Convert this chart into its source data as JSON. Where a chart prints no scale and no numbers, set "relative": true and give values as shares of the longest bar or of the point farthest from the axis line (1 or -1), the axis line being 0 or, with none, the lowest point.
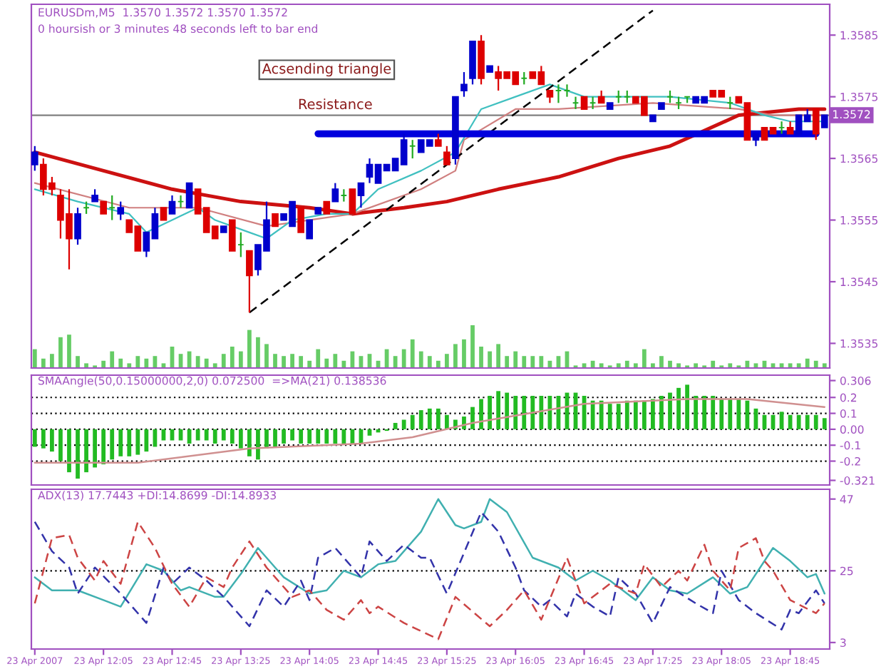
{
  "chart_data": [
    {
      "type": "candlestick",
      "title": "EURUSDm,M5  1.3570 1.3572 1.3570 1.3572",
      "subtitle": "0 hoursish or 3 minutes 48 seconds left to bar end",
      "x": [
        "2007-04-23T11:25",
        "2007-04-23T11:30",
        "2007-04-23T11:35",
        "2007-04-23T11:40",
        "2007-04-23T11:45",
        "2007-04-23T11:50",
        "2007-04-23T11:55",
        "2007-04-23T12:00",
        "2007-04-23T12:05",
        "2007-04-23T12:10",
        "2007-04-23T12:15",
        "2007-04-23T12:20",
        "2007-04-23T12:25",
        "2007-04-23T12:30",
        "2007-04-23T12:35",
        "2007-04-23T12:40",
        "2007-04-23T12:45",
        "2007-04-23T12:50",
        "2007-04-23T12:55",
        "2007-04-23T13:00",
        "2007-04-23T13:05",
        "2007-04-23T13:10",
        "2007-04-23T13:15",
        "2007-04-23T13:20",
        "2007-04-23T13:25",
        "2007-04-23T13:30",
        "2007-04-23T13:35",
        "2007-04-23T13:40",
        "2007-04-23T13:45",
        "2007-04-23T13:50",
        "2007-04-23T13:55",
        "2007-04-23T14:00",
        "2007-04-23T14:05",
        "2007-04-23T14:10",
        "2007-04-23T14:15",
        "2007-04-23T14:20",
        "2007-04-23T14:25",
        "2007-04-23T14:30",
        "2007-04-23T14:35",
        "2007-04-23T14:40",
        "2007-04-23T14:45",
        "2007-04-23T14:50",
        "2007-04-23T14:55",
        "2007-04-23T15:00",
        "2007-04-23T15:05",
        "2007-04-23T15:10",
        "2007-04-23T15:15",
        "2007-04-23T15:20",
        "2007-04-23T15:25",
        "2007-04-23T15:30",
        "2007-04-23T15:35",
        "2007-04-23T15:40",
        "2007-04-23T15:45",
        "2007-04-23T15:50",
        "2007-04-23T15:55",
        "2007-04-23T16:00",
        "2007-04-23T16:05",
        "2007-04-23T16:10",
        "2007-04-23T16:15",
        "2007-04-23T16:20",
        "2007-04-23T16:25",
        "2007-04-23T16:30",
        "2007-04-23T16:35",
        "2007-04-23T16:40",
        "2007-04-23T16:45",
        "2007-04-23T16:50",
        "2007-04-23T16:55",
        "2007-04-23T17:00",
        "2007-04-23T17:05",
        "2007-04-23T17:10",
        "2007-04-23T17:15",
        "2007-04-23T17:20",
        "2007-04-23T17:25",
        "2007-04-23T17:30",
        "2007-04-23T17:35",
        "2007-04-23T17:40",
        "2007-04-23T17:45",
        "2007-04-23T17:50",
        "2007-04-23T17:55",
        "2007-04-23T18:00",
        "2007-04-23T18:05",
        "2007-04-23T18:10",
        "2007-04-23T18:15",
        "2007-04-23T18:20",
        "2007-04-23T18:25",
        "2007-04-23T18:30",
        "2007-04-23T18:35",
        "2007-04-23T18:40",
        "2007-04-23T18:45",
        "2007-04-23T18:50",
        "2007-04-23T18:55",
        "2007-04-23T19:00",
        "2007-04-23T19:05"
      ],
      "ohlc": [
        [
          1.3564,
          1.3567,
          1.3563,
          1.3566
        ],
        [
          1.3564,
          1.3565,
          1.3559,
          1.356
        ],
        [
          1.3561,
          1.3562,
          1.3559,
          1.356
        ],
        [
          1.3559,
          1.356,
          1.3552,
          1.3555
        ],
        [
          1.3556,
          1.356,
          1.3547,
          1.3552
        ],
        [
          1.3552,
          1.3557,
          1.3551,
          1.3556
        ],
        [
          1.3557,
          1.3558,
          1.3556,
          1.3557
        ],
        [
          1.3558,
          1.356,
          1.3558,
          1.3559
        ],
        [
          1.3558,
          1.3558,
          1.3556,
          1.3556
        ],
        [
          1.3557,
          1.3559,
          1.3555,
          1.3557
        ],
        [
          1.3556,
          1.3558,
          1.3555,
          1.3557
        ],
        [
          1.3555,
          1.3555,
          1.3553,
          1.3553
        ],
        [
          1.3554,
          1.3554,
          1.355,
          1.355
        ],
        [
          1.355,
          1.3553,
          1.3549,
          1.3553
        ],
        [
          1.3552,
          1.3557,
          1.3552,
          1.3556
        ],
        [
          1.3557,
          1.3557,
          1.3555,
          1.3555
        ],
        [
          1.3556,
          1.3559,
          1.3556,
          1.3558
        ],
        [
          1.3558,
          1.3559,
          1.3557,
          1.3558
        ],
        [
          1.3557,
          1.3561,
          1.3557,
          1.3561
        ],
        [
          1.356,
          1.356,
          1.3556,
          1.3556
        ],
        [
          1.3557,
          1.3557,
          1.3553,
          1.3553
        ],
        [
          1.3554,
          1.3554,
          1.3552,
          1.3552
        ],
        [
          1.3553,
          1.3554,
          1.3553,
          1.3554
        ],
        [
          1.3555,
          1.3555,
          1.355,
          1.355
        ],
        [
          1.3551,
          1.3553,
          1.3549,
          1.3551
        ],
        [
          1.355,
          1.355,
          1.354,
          1.3546
        ],
        [
          1.3547,
          1.3551,
          1.3546,
          1.3551
        ],
        [
          1.355,
          1.3558,
          1.355,
          1.3555
        ],
        [
          1.3556,
          1.3556,
          1.3554,
          1.3554
        ],
        [
          1.3555,
          1.3556,
          1.3555,
          1.3556
        ],
        [
          1.3554,
          1.3558,
          1.3554,
          1.3558
        ],
        [
          1.3557,
          1.3557,
          1.3553,
          1.3553
        ],
        [
          1.3552,
          1.3555,
          1.3552,
          1.3555
        ],
        [
          1.3556,
          1.3557,
          1.3556,
          1.3557
        ],
        [
          1.3558,
          1.3558,
          1.3556,
          1.3556
        ],
        [
          1.3558,
          1.3561,
          1.3558,
          1.356
        ],
        [
          1.3559,
          1.356,
          1.3558,
          1.3559
        ],
        [
          1.356,
          1.356,
          1.3556,
          1.3556
        ],
        [
          1.3559,
          1.3561,
          1.3557,
          1.3561
        ],
        [
          1.3562,
          1.3565,
          1.3561,
          1.3564
        ],
        [
          1.3561,
          1.3564,
          1.3561,
          1.3564
        ],
        [
          1.3563,
          1.3564,
          1.3563,
          1.3564
        ],
        [
          1.3563,
          1.3565,
          1.3563,
          1.3565
        ],
        [
          1.3564,
          1.3569,
          1.3564,
          1.3568
        ],
        [
          1.3567,
          1.3568,
          1.3565,
          1.3567
        ],
        [
          1.3566,
          1.3568,
          1.3566,
          1.3568
        ],
        [
          1.3567,
          1.3568,
          1.3567,
          1.3568
        ],
        [
          1.3568,
          1.3569,
          1.3567,
          1.3567
        ],
        [
          1.3566,
          1.3567,
          1.3564,
          1.3564
        ],
        [
          1.3565,
          1.3575,
          1.3564,
          1.3575
        ],
        [
          1.3576,
          1.3579,
          1.3575,
          1.3577
        ],
        [
          1.3578,
          1.3584,
          1.3577,
          1.3584
        ],
        [
          1.3584,
          1.3585,
          1.3577,
          1.3578
        ],
        [
          1.3579,
          1.358,
          1.3579,
          1.358
        ],
        [
          1.3579,
          1.358,
          1.3576,
          1.3578
        ],
        [
          1.3579,
          1.3579,
          1.3578,
          1.3578
        ],
        [
          1.3579,
          1.3579,
          1.3577,
          1.3577
        ],
        [
          1.3578,
          1.3579,
          1.3577,
          1.3578
        ],
        [
          1.3579,
          1.3579,
          1.3578,
          1.3578
        ],
        [
          1.3579,
          1.358,
          1.3577,
          1.3577
        ],
        [
          1.3576,
          1.3576,
          1.3574,
          1.3575
        ],
        [
          1.3576,
          1.3577,
          1.3574,
          1.3576
        ],
        [
          1.3576,
          1.3577,
          1.3575,
          1.3576
        ],
        [
          1.3574,
          1.3575,
          1.3573,
          1.3574
        ],
        [
          1.3575,
          1.3575,
          1.3573,
          1.3573
        ],
        [
          1.3574,
          1.3575,
          1.3573,
          1.3574
        ],
        [
          1.3575,
          1.3576,
          1.3574,
          1.3574
        ],
        [
          1.3573,
          1.3574,
          1.3573,
          1.3574
        ],
        [
          1.3575,
          1.3576,
          1.3574,
          1.3575
        ],
        [
          1.3575,
          1.3576,
          1.3574,
          1.3575
        ],
        [
          1.3575,
          1.3575,
          1.3574,
          1.3574
        ],
        [
          1.3575,
          1.3575,
          1.3572,
          1.3572
        ],
        [
          1.3571,
          1.3572,
          1.3571,
          1.3572
        ],
        [
          1.3573,
          1.3574,
          1.3573,
          1.3574
        ],
        [
          1.3575,
          1.3576,
          1.3574,
          1.3575
        ],
        [
          1.3574,
          1.3575,
          1.3573,
          1.3574
        ],
        [
          1.3575,
          1.3575,
          1.3574,
          1.3575
        ],
        [
          1.3574,
          1.3575,
          1.3574,
          1.3575
        ],
        [
          1.3574,
          1.3575,
          1.3574,
          1.3575
        ],
        [
          1.3576,
          1.3576,
          1.3575,
          1.3575
        ],
        [
          1.3576,
          1.3576,
          1.3575,
          1.3575
        ],
        [
          1.3574,
          1.3575,
          1.3573,
          1.3574
        ],
        [
          1.3575,
          1.3575,
          1.3574,
          1.3574
        ],
        [
          1.3574,
          1.3574,
          1.3568,
          1.3568
        ],
        [
          1.3568,
          1.3569,
          1.3567,
          1.3569
        ],
        [
          1.357,
          1.357,
          1.3568,
          1.3568
        ],
        [
          1.357,
          1.357,
          1.3569,
          1.3569
        ],
        [
          1.357,
          1.3571,
          1.3569,
          1.357
        ],
        [
          1.357,
          1.3571,
          1.3569,
          1.3569
        ],
        [
          1.3569,
          1.3572,
          1.3569,
          1.3572
        ],
        [
          1.3571,
          1.3573,
          1.3571,
          1.3572
        ],
        [
          1.3573,
          1.3573,
          1.3568,
          1.3569
        ],
        [
          1.357,
          1.3572,
          1.357,
          1.3572
        ]
      ],
      "colors": [
        "#0000cc",
        "#dd0000",
        "#dd0000",
        "#dd0000",
        "#dd0000",
        "#0000cc",
        "#22aa22",
        "#0000cc",
        "#dd0000",
        "#22aa22",
        "#0000cc",
        "#dd0000",
        "#dd0000",
        "#0000cc",
        "#0000cc",
        "#dd0000",
        "#0000cc",
        "#22aa22",
        "#0000cc",
        "#dd0000",
        "#dd0000",
        "#dd0000",
        "#0000cc",
        "#dd0000",
        "#22aa22",
        "#dd0000",
        "#0000cc",
        "#0000cc",
        "#dd0000",
        "#0000cc",
        "#0000cc",
        "#dd0000",
        "#0000cc",
        "#0000cc",
        "#dd0000",
        "#0000cc",
        "#22aa22",
        "#dd0000",
        "#0000cc",
        "#0000cc",
        "#0000cc",
        "#0000cc",
        "#0000cc",
        "#0000cc",
        "#22aa22",
        "#0000cc",
        "#0000cc",
        "#dd0000",
        "#dd0000",
        "#0000cc",
        "#0000cc",
        "#0000cc",
        "#dd0000",
        "#0000cc",
        "#dd0000",
        "#dd0000",
        "#dd0000",
        "#22aa22",
        "#dd0000",
        "#dd0000",
        "#dd0000",
        "#22aa22",
        "#22aa22",
        "#22aa22",
        "#dd0000",
        "#22aa22",
        "#dd0000",
        "#0000cc",
        "#22aa22",
        "#22aa22",
        "#dd0000",
        "#dd0000",
        "#0000cc",
        "#0000cc",
        "#22aa22",
        "#22aa22",
        "#22aa22",
        "#0000cc",
        "#0000cc",
        "#dd0000",
        "#dd0000",
        "#22aa22",
        "#dd0000",
        "#dd0000",
        "#0000cc",
        "#dd0000",
        "#dd0000",
        "#22aa22",
        "#dd0000",
        "#0000cc",
        "#0000cc",
        "#dd0000",
        "#0000cc"
      ],
      "series": [
        {
          "type": "line",
          "color": "#cc1111",
          "x": [
            "2007-04-23T11:25",
            "2007-04-23T12:05",
            "2007-04-23T12:45",
            "2007-04-23T13:25",
            "2007-04-23T14:05",
            "2007-04-23T14:30",
            "2007-04-23T15:00",
            "2007-04-23T15:25",
            "2007-04-23T15:55",
            "2007-04-23T16:30",
            "2007-04-23T17:05",
            "2007-04-23T17:35",
            "2007-04-23T18:15",
            "2007-04-23T18:50",
            "2007-04-23T19:05"
          ],
          "values": [
            1.3566,
            1.3563,
            1.356,
            1.3558,
            1.3557,
            1.3556,
            1.3557,
            1.3558,
            1.356,
            1.3562,
            1.3565,
            1.3567,
            1.3572,
            1.3573,
            1.3573
          ]
        },
        {
          "type": "line",
          "color": "#d08080",
          "x": [
            "2007-04-23T11:25",
            "2007-04-23T12:20",
            "2007-04-23T13:00",
            "2007-04-23T13:40",
            "2007-04-23T14:30",
            "2007-04-23T15:10",
            "2007-04-23T15:30",
            "2007-04-23T15:35",
            "2007-04-23T16:05",
            "2007-04-23T16:30",
            "2007-04-23T17:25",
            "2007-04-23T18:15",
            "2007-04-23T18:35",
            "2007-04-23T19:05"
          ],
          "values": [
            1.3561,
            1.3557,
            1.3557,
            1.3554,
            1.3556,
            1.356,
            1.3563,
            1.3568,
            1.3573,
            1.3573,
            1.3574,
            1.3573,
            1.3572,
            1.3572
          ]
        },
        {
          "type": "line",
          "color": "#40c0c0",
          "x": [
            "2007-04-23T11:25",
            "2007-04-23T11:50",
            "2007-04-23T12:20",
            "2007-04-23T12:30",
            "2007-04-23T12:45",
            "2007-04-23T13:00",
            "2007-04-23T13:10",
            "2007-04-23T13:30",
            "2007-04-23T13:40",
            "2007-04-23T13:55",
            "2007-04-23T14:15",
            "2007-04-23T14:30",
            "2007-04-23T14:45",
            "2007-04-23T15:10",
            "2007-04-23T15:30",
            "2007-04-23T15:45",
            "2007-04-23T16:05",
            "2007-04-23T16:25",
            "2007-04-23T16:45",
            "2007-04-23T17:10",
            "2007-04-23T17:35",
            "2007-04-23T18:10",
            "2007-04-23T18:30",
            "2007-04-23T18:45",
            "2007-04-23T19:05"
          ],
          "values": [
            1.356,
            1.3558,
            1.3556,
            1.3553,
            1.3555,
            1.3557,
            1.3555,
            1.3553,
            1.3552,
            1.3555,
            1.3556,
            1.3556,
            1.356,
            1.3563,
            1.3566,
            1.3573,
            1.3575,
            1.3577,
            1.3575,
            1.3575,
            1.3575,
            1.3574,
            1.3572,
            1.3571,
            1.3571
          ]
        },
        {
          "type": "line",
          "color": "#000000",
          "line_style": "dashed",
          "x": [
            "2007-04-23T13:30",
            "2007-04-23T17:25"
          ],
          "values": [
            1.354,
            1.3589
          ]
        },
        {
          "type": "line",
          "color": "#0000dd",
          "x": [
            "2007-04-23T14:10",
            "2007-04-23T19:00"
          ],
          "values": [
            1.3569,
            1.3569
          ]
        }
      ],
      "annotations": [
        "Acsending triangle",
        {
          "text": "Resistance",
          "x": "2007-04-23T14:20",
          "y": 1.3569
        }
      ],
      "ref_lines": [
        {
          "axis": "y",
          "value": 1.3572,
          "label": "1.3572",
          "color": "#808080"
        }
      ],
      "xlim": [
        "2007-04-23T11:23",
        "2007-04-23T19:08"
      ],
      "ylim": [
        1.3531,
        1.359
      ],
      "yticks": [
        1.3535,
        1.3545,
        1.3555,
        1.3565,
        1.3575,
        1.3585
      ],
      "tick_labels": "y"
    },
    {
      "type": "bar",
      "relative": true,
      "color": "#66cc66",
      "tick_labels": false,
      "xlim": [
        "2007-04-23T11:23",
        "2007-04-23T19:08"
      ],
      "x": [
        "2007-04-23T11:25",
        "2007-04-23T11:30",
        "2007-04-23T11:35",
        "2007-04-23T11:40",
        "2007-04-23T11:45",
        "2007-04-23T11:50",
        "2007-04-23T11:55",
        "2007-04-23T12:00",
        "2007-04-23T12:05",
        "2007-04-23T12:10",
        "2007-04-23T12:15",
        "2007-04-23T12:20",
        "2007-04-23T12:25",
        "2007-04-23T12:30",
        "2007-04-23T12:35",
        "2007-04-23T12:40",
        "2007-04-23T12:45",
        "2007-04-23T12:50",
        "2007-04-23T12:55",
        "2007-04-23T13:00",
        "2007-04-23T13:05",
        "2007-04-23T13:10",
        "2007-04-23T13:15",
        "2007-04-23T13:20",
        "2007-04-23T13:25",
        "2007-04-23T13:30",
        "2007-04-23T13:35",
        "2007-04-23T13:40",
        "2007-04-23T13:45",
        "2007-04-23T13:50",
        "2007-04-23T13:55",
        "2007-04-23T14:00",
        "2007-04-23T14:05",
        "2007-04-23T14:10",
        "2007-04-23T14:15",
        "2007-04-23T14:20",
        "2007-04-23T14:25",
        "2007-04-23T14:30",
        "2007-04-23T14:35",
        "2007-04-23T14:40",
        "2007-04-23T14:45",
        "2007-04-23T14:50",
        "2007-04-23T14:55",
        "2007-04-23T15:00",
        "2007-04-23T15:05",
        "2007-04-23T15:10",
        "2007-04-23T15:15",
        "2007-04-23T15:20",
        "2007-04-23T15:25",
        "2007-04-23T15:30",
        "2007-04-23T15:35",
        "2007-04-23T15:40",
        "2007-04-23T15:45",
        "2007-04-23T15:50",
        "2007-04-23T15:55",
        "2007-04-23T16:00",
        "2007-04-23T16:05",
        "2007-04-23T16:10",
        "2007-04-23T16:15",
        "2007-04-23T16:20",
        "2007-04-23T16:25",
        "2007-04-23T16:30",
        "2007-04-23T16:35",
        "2007-04-23T16:40",
        "2007-04-23T16:45",
        "2007-04-23T16:50",
        "2007-04-23T16:55",
        "2007-04-23T17:00",
        "2007-04-23T17:05",
        "2007-04-23T17:10",
        "2007-04-23T17:15",
        "2007-04-23T17:20",
        "2007-04-23T17:25",
        "2007-04-23T17:30",
        "2007-04-23T17:35",
        "2007-04-23T17:40",
        "2007-04-23T17:45",
        "2007-04-23T17:50",
        "2007-04-23T17:55",
        "2007-04-23T18:00",
        "2007-04-23T18:05",
        "2007-04-23T18:10",
        "2007-04-23T18:15",
        "2007-04-23T18:20",
        "2007-04-23T18:25",
        "2007-04-23T18:30",
        "2007-04-23T18:35",
        "2007-04-23T18:40",
        "2007-04-23T18:45",
        "2007-04-23T18:50",
        "2007-04-23T18:55",
        "2007-04-23T19:00",
        "2007-04-23T19:05"
      ],
      "values": [
        0.44,
        0.22,
        0.33,
        0.72,
        0.78,
        0.28,
        0.11,
        0.06,
        0.17,
        0.39,
        0.22,
        0.11,
        0.28,
        0.22,
        0.28,
        0.11,
        0.5,
        0.33,
        0.39,
        0.28,
        0.22,
        0.11,
        0.33,
        0.5,
        0.39,
        0.89,
        0.72,
        0.56,
        0.33,
        0.28,
        0.33,
        0.28,
        0.17,
        0.44,
        0.22,
        0.33,
        0.17,
        0.39,
        0.28,
        0.33,
        0.17,
        0.44,
        0.28,
        0.44,
        0.67,
        0.39,
        0.28,
        0.17,
        0.33,
        0.56,
        0.67,
        1,
        0.5,
        0.39,
        0.56,
        0.28,
        0.39,
        0.28,
        0.28,
        0.28,
        0.17,
        0.28,
        0.39,
        0.06,
        0.11,
        0.17,
        0.11,
        0.06,
        0.11,
        0.17,
        0.11,
        0.44,
        0.11,
        0.28,
        0.17,
        0.11,
        0.06,
        0.11,
        0.06,
        0.17,
        0.06,
        0.11,
        0.06,
        0.17,
        0.11,
        0.17,
        0.11,
        0.11,
        0.11,
        0.11,
        0.22,
        0.17,
        0.11
      ]
    },
    {
      "type": "bar",
      "title": "SMAAngle(50,0.15000000,2,0) 0.072500  =>MA(21) 0.138536",
      "x": [
        "2007-04-23T11:25",
        "2007-04-23T11:30",
        "2007-04-23T11:35",
        "2007-04-23T11:40",
        "2007-04-23T11:45",
        "2007-04-23T11:50",
        "2007-04-23T11:55",
        "2007-04-23T12:00",
        "2007-04-23T12:05",
        "2007-04-23T12:10",
        "2007-04-23T12:15",
        "2007-04-23T12:20",
        "2007-04-23T12:25",
        "2007-04-23T12:30",
        "2007-04-23T12:35",
        "2007-04-23T12:40",
        "2007-04-23T12:45",
        "2007-04-23T12:50",
        "2007-04-23T12:55",
        "2007-04-23T13:00",
        "2007-04-23T13:05",
        "2007-04-23T13:10",
        "2007-04-23T13:15",
        "2007-04-23T13:20",
        "2007-04-23T13:25",
        "2007-04-23T13:30",
        "2007-04-23T13:35",
        "2007-04-23T13:40",
        "2007-04-23T13:45",
        "2007-04-23T13:50",
        "2007-04-23T13:55",
        "2007-04-23T14:00",
        "2007-04-23T14:05",
        "2007-04-23T14:10",
        "2007-04-23T14:15",
        "2007-04-23T14:20",
        "2007-04-23T14:25",
        "2007-04-23T14:30",
        "2007-04-23T14:35",
        "2007-04-23T14:40",
        "2007-04-23T14:45",
        "2007-04-23T14:50",
        "2007-04-23T14:55",
        "2007-04-23T15:00",
        "2007-04-23T15:05",
        "2007-04-23T15:10",
        "2007-04-23T15:15",
        "2007-04-23T15:20",
        "2007-04-23T15:25",
        "2007-04-23T15:30",
        "2007-04-23T15:35",
        "2007-04-23T15:40",
        "2007-04-23T15:45",
        "2007-04-23T15:50",
        "2007-04-23T15:55",
        "2007-04-23T16:00",
        "2007-04-23T16:05",
        "2007-04-23T16:10",
        "2007-04-23T16:15",
        "2007-04-23T16:20",
        "2007-04-23T16:25",
        "2007-04-23T16:30",
        "2007-04-23T16:35",
        "2007-04-23T16:40",
        "2007-04-23T16:45",
        "2007-04-23T16:50",
        "2007-04-23T16:55",
        "2007-04-23T17:00",
        "2007-04-23T17:05",
        "2007-04-23T17:10",
        "2007-04-23T17:15",
        "2007-04-23T17:20",
        "2007-04-23T17:25",
        "2007-04-23T17:30",
        "2007-04-23T17:35",
        "2007-04-23T17:40",
        "2007-04-23T17:45",
        "2007-04-23T17:50",
        "2007-04-23T17:55",
        "2007-04-23T18:00",
        "2007-04-23T18:05",
        "2007-04-23T18:10",
        "2007-04-23T18:15",
        "2007-04-23T18:20",
        "2007-04-23T18:25",
        "2007-04-23T18:30",
        "2007-04-23T18:35",
        "2007-04-23T18:40",
        "2007-04-23T18:45",
        "2007-04-23T18:50",
        "2007-04-23T18:55",
        "2007-04-23T19:00",
        "2007-04-23T19:05"
      ],
      "series": [
        {
          "type": "bar",
          "color": "#22bb22",
          "values": [
            -0.11,
            -0.12,
            -0.14,
            -0.2,
            -0.27,
            -0.31,
            -0.27,
            -0.24,
            -0.22,
            -0.19,
            -0.17,
            -0.17,
            -0.16,
            -0.14,
            -0.11,
            -0.07,
            -0.07,
            -0.07,
            -0.09,
            -0.07,
            -0.07,
            -0.09,
            -0.07,
            -0.09,
            -0.12,
            -0.17,
            -0.19,
            -0.12,
            -0.11,
            -0.09,
            -0.07,
            -0.09,
            -0.09,
            -0.09,
            -0.09,
            -0.09,
            -0.09,
            -0.09,
            -0.09,
            -0.04,
            -0.02,
            -0.01,
            0.04,
            0.06,
            0.09,
            0.12,
            0.13,
            0.13,
            0.09,
            0.06,
            0.08,
            0.14,
            0.19,
            0.21,
            0.24,
            0.23,
            0.21,
            0.21,
            0.21,
            0.21,
            0.21,
            0.21,
            0.23,
            0.23,
            0.21,
            0.18,
            0.18,
            0.16,
            0.16,
            0.18,
            0.18,
            0.18,
            0.19,
            0.21,
            0.23,
            0.26,
            0.28,
            0.21,
            0.21,
            0.21,
            0.19,
            0.19,
            0.19,
            0.18,
            0.13,
            0.09,
            0.09,
            0.11,
            0.09,
            0.09,
            0.09,
            0.09,
            0.07
          ]
        },
        {
          "type": "line",
          "color": "#d09090",
          "x": [
            "2007-04-23T11:25",
            "2007-04-23T12:25",
            "2007-04-23T13:30",
            "2007-04-23T14:35",
            "2007-04-23T15:05",
            "2007-04-23T15:40",
            "2007-04-23T16:45",
            "2007-04-23T17:45",
            "2007-04-23T18:20",
            "2007-04-23T19:05"
          ],
          "values": [
            -0.21,
            -0.21,
            -0.12,
            -0.09,
            -0.05,
            0.04,
            0.16,
            0.19,
            0.19,
            0.14
          ]
        }
      ],
      "ref_lines": [
        {
          "axis": "y",
          "value": 0.2,
          "color": "#000000",
          "line_style": "dotted"
        },
        {
          "axis": "y",
          "value": 0.1,
          "color": "#000000",
          "line_style": "dotted"
        },
        {
          "axis": "y",
          "value": 0,
          "color": "#000000",
          "line_style": "dotted"
        },
        {
          "axis": "y",
          "value": -0.1,
          "color": "#000000",
          "line_style": "dotted"
        },
        {
          "axis": "y",
          "value": -0.2,
          "color": "#000000",
          "line_style": "dotted"
        }
      ],
      "xlim": [
        "2007-04-23T11:23",
        "2007-04-23T19:08"
      ],
      "ylim": [
        -0.35,
        0.34
      ],
      "yticks": [
        0.306,
        0.2,
        0.1,
        {
          "value": 0,
          "label": "0.00"
        },
        -0.1,
        -0.2,
        -0.321
      ],
      "tick_labels": "y"
    },
    {
      "type": "line",
      "title": "ADX(13) 17.7443 +DI:14.8699 -DI:14.8933",
      "series": [
        {
          "color": "#40b0b0",
          "line_style": "solid",
          "x": [
            "2007-04-23T11:25",
            "2007-04-23T11:35",
            "2007-04-23T11:50",
            "2007-04-23T12:05",
            "2007-04-23T12:15",
            "2007-04-23T12:30",
            "2007-04-23T12:40",
            "2007-04-23T12:50",
            "2007-04-23T12:55",
            "2007-04-23T13:10",
            "2007-04-23T13:15",
            "2007-04-23T13:25",
            "2007-04-23T13:35",
            "2007-04-23T13:45",
            "2007-04-23T13:50",
            "2007-04-23T14:05",
            "2007-04-23T14:15",
            "2007-04-23T14:25",
            "2007-04-23T14:35",
            "2007-04-23T14:45",
            "2007-04-23T14:55",
            "2007-04-23T15:10",
            "2007-04-23T15:20",
            "2007-04-23T15:30",
            "2007-04-23T15:35",
            "2007-04-23T15:45",
            "2007-04-23T15:50",
            "2007-04-23T16:00",
            "2007-04-23T16:15",
            "2007-04-23T16:30",
            "2007-04-23T16:40",
            "2007-04-23T16:50",
            "2007-04-23T17:00",
            "2007-04-23T17:15",
            "2007-04-23T17:25",
            "2007-04-23T17:35",
            "2007-04-23T17:45",
            "2007-04-23T18:00",
            "2007-04-23T18:10",
            "2007-04-23T18:20",
            "2007-04-23T18:35",
            "2007-04-23T18:45",
            "2007-04-23T18:55",
            "2007-04-23T19:00",
            "2007-04-23T19:05"
          ],
          "values": [
            23,
            19,
            19,
            16,
            14,
            27,
            25,
            19,
            20,
            17,
            17,
            24,
            32,
            26,
            23,
            18,
            19,
            25,
            23,
            27,
            28,
            37,
            47,
            39,
            38,
            40,
            47,
            43,
            29,
            26,
            22,
            25,
            22,
            16,
            23,
            19,
            18,
            23,
            18,
            20,
            32,
            28,
            23,
            24,
            18
          ]
        },
        {
          "color": "#3333aa",
          "line_style": "dashed",
          "x": [
            "2007-04-23T11:25",
            "2007-04-23T11:35",
            "2007-04-23T11:45",
            "2007-04-23T11:50",
            "2007-04-23T12:00",
            "2007-04-23T12:15",
            "2007-04-23T12:30",
            "2007-04-23T12:40",
            "2007-04-23T12:45",
            "2007-04-23T12:55",
            "2007-04-23T13:05",
            "2007-04-23T13:15",
            "2007-04-23T13:30",
            "2007-04-23T13:40",
            "2007-04-23T13:50",
            "2007-04-23T14:00",
            "2007-04-23T14:05",
            "2007-04-23T14:10",
            "2007-04-23T14:20",
            "2007-04-23T14:30",
            "2007-04-23T14:35",
            "2007-04-23T14:40",
            "2007-04-23T14:50",
            "2007-04-23T15:00",
            "2007-04-23T15:10",
            "2007-04-23T15:15",
            "2007-04-23T15:25",
            "2007-04-23T15:45",
            "2007-04-23T15:55",
            "2007-04-23T16:05",
            "2007-04-23T16:10",
            "2007-04-23T16:20",
            "2007-04-23T16:25",
            "2007-04-23T16:35",
            "2007-04-23T16:40",
            "2007-04-23T16:50",
            "2007-04-23T17:00",
            "2007-04-23T17:05",
            "2007-04-23T17:15",
            "2007-04-23T17:25",
            "2007-04-23T17:35",
            "2007-04-23T17:50",
            "2007-04-23T18:00",
            "2007-04-23T18:05",
            "2007-04-23T18:15",
            "2007-04-23T18:25",
            "2007-04-23T18:40",
            "2007-04-23T18:45",
            "2007-04-23T18:50",
            "2007-04-23T19:00",
            "2007-04-23T19:05"
          ],
          "values": [
            40,
            31,
            26,
            18,
            26,
            18,
            9,
            26,
            21,
            26,
            22,
            17,
            8,
            19,
            14,
            22,
            16,
            29,
            32,
            26,
            23,
            34,
            28,
            33,
            29,
            29,
            18,
            43,
            37,
            26,
            19,
            14,
            16,
            11,
            18,
            14,
            11,
            23,
            18,
            9,
            20,
            15,
            12,
            25,
            16,
            12,
            7,
            13,
            12,
            19,
            15
          ]
        },
        {
          "color": "#cc4444",
          "line_style": "dashed",
          "x": [
            "2007-04-23T11:25",
            "2007-04-23T11:35",
            "2007-04-23T11:45",
            "2007-04-23T11:50",
            "2007-04-23T12:00",
            "2007-04-23T12:05",
            "2007-04-23T12:15",
            "2007-04-23T12:25",
            "2007-04-23T12:35",
            "2007-04-23T12:45",
            "2007-04-23T12:55",
            "2007-04-23T13:05",
            "2007-04-23T13:15",
            "2007-04-23T13:20",
            "2007-04-23T13:30",
            "2007-04-23T13:40",
            "2007-04-23T13:55",
            "2007-04-23T14:05",
            "2007-04-23T14:15",
            "2007-04-23T14:25",
            "2007-04-23T14:35",
            "2007-04-23T14:40",
            "2007-04-23T14:45",
            "2007-04-23T15:00",
            "2007-04-23T15:20",
            "2007-04-23T15:30",
            "2007-04-23T15:50",
            "2007-04-23T16:00",
            "2007-04-23T16:10",
            "2007-04-23T16:20",
            "2007-04-23T16:35",
            "2007-04-23T16:40",
            "2007-04-23T16:45",
            "2007-04-23T17:00",
            "2007-04-23T17:15",
            "2007-04-23T17:20",
            "2007-04-23T17:30",
            "2007-04-23T17:40",
            "2007-04-23T17:45",
            "2007-04-23T17:55",
            "2007-04-23T18:00",
            "2007-04-23T18:10",
            "2007-04-23T18:15",
            "2007-04-23T18:25",
            "2007-04-23T18:30",
            "2007-04-23T18:35",
            "2007-04-23T18:45",
            "2007-04-23T19:00",
            "2007-04-23T19:05"
          ],
          "values": [
            15,
            35,
            36,
            29,
            22,
            28,
            21,
            40,
            32,
            21,
            14,
            23,
            20,
            26,
            34,
            26,
            17,
            19,
            13,
            10,
            16,
            12,
            14,
            9,
            4,
            17,
            8,
            13,
            19,
            10,
            29,
            22,
            15,
            21,
            18,
            27,
            20,
            25,
            22,
            33,
            25,
            19,
            32,
            35,
            28,
            25,
            16,
            12,
            15
          ]
        }
      ],
      "ref_lines": [
        {
          "axis": "y",
          "value": 25,
          "color": "#000000",
          "line_style": "dotted"
        }
      ],
      "xlim": [
        "2007-04-23T11:23",
        "2007-04-23T19:08"
      ],
      "ylim": [
        1,
        50
      ],
      "yticks": [
        3,
        25,
        47
      ],
      "xticks": [
        {
          "value": "2007-04-23T11:25",
          "label": "23 Apr 2007"
        },
        {
          "value": "2007-04-23T12:05",
          "label": "23 Apr 12:05"
        },
        {
          "value": "2007-04-23T12:45",
          "label": "23 Apr 12:45"
        },
        {
          "value": "2007-04-23T13:25",
          "label": "23 Apr 13:25"
        },
        {
          "value": "2007-04-23T14:05",
          "label": "23 Apr 14:05"
        },
        {
          "value": "2007-04-23T14:45",
          "label": "23 Apr 14:45"
        },
        {
          "value": "2007-04-23T15:25",
          "label": "23 Apr 15:25"
        },
        {
          "value": "2007-04-23T16:05",
          "label": "23 Apr 16:05"
        },
        {
          "value": "2007-04-23T16:45",
          "label": "23 Apr 16:45"
        },
        {
          "value": "2007-04-23T17:25",
          "label": "23 Apr 17:25"
        },
        {
          "value": "2007-04-23T18:05",
          "label": "23 Apr 18:05"
        },
        {
          "value": "2007-04-23T18:45",
          "label": "23 Apr 18:45"
        }
      ]
    }
  ]
}
